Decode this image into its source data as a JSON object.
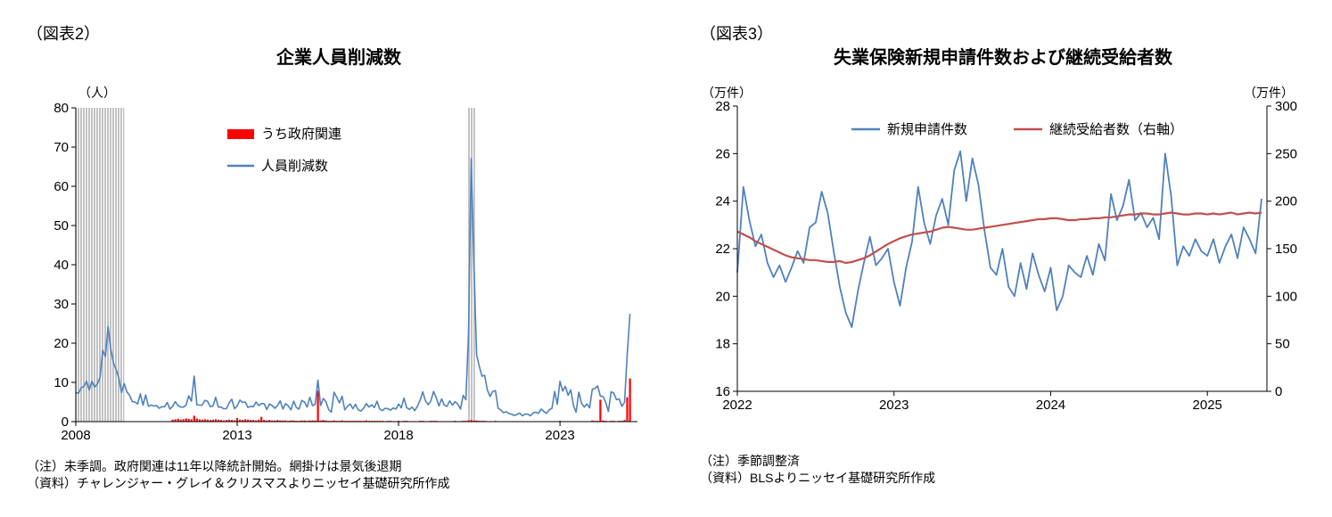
{
  "figure2": {
    "label": "（図表2）",
    "title": "企業人員削減数",
    "unit_left": "（人）",
    "notes": [
      "（注）未季調。政府関連は11年以降統計開始。網掛けは景気後退期",
      "（資料）チャレンジャー・グレイ＆クリスマスよりニッセイ基礎研究所作成"
    ]
  },
  "figure3": {
    "label": "（図表3）",
    "title": "失業保険新規申請件数および継続受給者数",
    "unit_left": "（万件）",
    "unit_right": "（万件）",
    "notes": [
      "（注）季節調整済",
      "（資料）BLSよりニッセイ基礎研究所作成"
    ]
  },
  "chart_data": [
    {
      "type": "combo-bar-line",
      "title": "企業人員削減数",
      "ylabel": "（人）",
      "xlim": [
        2008,
        2025.4
      ],
      "ylim": [
        0,
        80
      ],
      "yticks": [
        0,
        10,
        20,
        30,
        40,
        50,
        60,
        70,
        80
      ],
      "xticks": [
        2008,
        2013,
        2018,
        2023
      ],
      "grid": false,
      "legend_position": "upper-left-inside",
      "recession_bands": [
        [
          2008.0,
          2009.5
        ],
        [
          2020.12,
          2020.37
        ]
      ],
      "x_start": 2008.0,
      "x_step_years": 0.08333,
      "series": [
        {
          "name": "うち政府関連",
          "render": "bar",
          "color": "#FF0000",
          "values": [
            0,
            0,
            0,
            0,
            0,
            0,
            0,
            0,
            0,
            0,
            0,
            0,
            0,
            0,
            0,
            0,
            0,
            0,
            0,
            0,
            0,
            0,
            0,
            0,
            0,
            0,
            0,
            0,
            0,
            0,
            0,
            0,
            0,
            0,
            0,
            0,
            0.5,
            0.6,
            0.7,
            0.5,
            0.6,
            0.8,
            0.7,
            0.6,
            1.5,
            0.8,
            0.6,
            0.5,
            0.6,
            0.5,
            0.4,
            0.5,
            0.6,
            0.5,
            0.4,
            0.3,
            0.4,
            0.5,
            0.4,
            0.3,
            0.9,
            0.5,
            0.4,
            0.6,
            0.5,
            0.4,
            0.4,
            0.3,
            0.5,
            1.2,
            0.4,
            0.3,
            0.4,
            0.3,
            0.3,
            0.4,
            0.3,
            0.3,
            0.3,
            0.2,
            0.3,
            0.3,
            0.2,
            0.2,
            0.3,
            0.3,
            0.2,
            0.3,
            0.3,
            0.3,
            7.9,
            0.3,
            0.4,
            0.3,
            0.2,
            0.2,
            0.3,
            0.2,
            0.2,
            0.3,
            0.2,
            0.2,
            0.2,
            0.2,
            0.2,
            0.2,
            0.2,
            0.2,
            0.3,
            0.2,
            0.2,
            0.2,
            0.2,
            0.2,
            0.2,
            0.1,
            0.2,
            0.2,
            0.1,
            0.1,
            0.2,
            0.1,
            0.2,
            0.2,
            0.1,
            0.1,
            0.1,
            0.1,
            0.2,
            0.2,
            0.1,
            0.1,
            0.2,
            0.2,
            0.2,
            0.1,
            0.1,
            0.1,
            0.1,
            0.1,
            0.1,
            0.2,
            0.1,
            0.1,
            0.2,
            0.2,
            0.3,
            0.4,
            0.3,
            0.3,
            0.2,
            0.2,
            0.2,
            0.1,
            0.1,
            0.1,
            0.2,
            0.1,
            0.1,
            0.1,
            0.1,
            0.1,
            0.1,
            0.1,
            0.1,
            0.1,
            0.1,
            0.1,
            0.1,
            0.1,
            0.1,
            0.1,
            0.1,
            0.1,
            0.1,
            0.1,
            0.1,
            0.1,
            0.1,
            0.1,
            0.2,
            0.1,
            0.1,
            0.1,
            0.1,
            0.1,
            0.1,
            0.1,
            0.1,
            0.1,
            0.1,
            0.1,
            0.3,
            0.2,
            0.2,
            5.6,
            0.3,
            0.2,
            0.1,
            0.2,
            0.2,
            0.1,
            0.2,
            0.2,
            0.4,
            6.2,
            11.0
          ]
        },
        {
          "name": "人員削減数",
          "render": "line",
          "color": "#4F81BD",
          "values": [
            7.4,
            7.2,
            8.6,
            9.0,
            10.3,
            8.1,
            10.3,
            8.8,
            9.6,
            11.3,
            18.2,
            16.6,
            24.2,
            18.6,
            15.0,
            13.2,
            11.1,
            7.4,
            9.7,
            7.6,
            6.7,
            5.1,
            5.0,
            4.5,
            7.1,
            4.2,
            6.8,
            3.9,
            4.2,
            4.0,
            4.1,
            3.4,
            3.8,
            3.8,
            4.9,
            3.2,
            3.9,
            5.1,
            4.1,
            3.7,
            3.7,
            4.2,
            6.6,
            5.2,
            11.6,
            4.3,
            4.2,
            4.2,
            5.4,
            5.2,
            3.8,
            4.0,
            6.2,
            3.7,
            3.7,
            3.3,
            3.3,
            4.8,
            5.7,
            3.3,
            4.0,
            5.5,
            4.9,
            5.0,
            3.6,
            3.9,
            3.8,
            5.0,
            4.1,
            4.6,
            4.6,
            3.1,
            4.5,
            4.1,
            3.4,
            4.1,
            5.3,
            3.2,
            4.6,
            4.0,
            3.0,
            5.2,
            3.6,
            3.2,
            5.4,
            5.0,
            3.7,
            6.2,
            4.1,
            4.4,
            10.6,
            4.1,
            5.9,
            5.1,
            3.1,
            2.4,
            7.5,
            6.2,
            4.8,
            6.5,
            3.0,
            3.9,
            4.5,
            3.3,
            4.4,
            3.0,
            2.7,
            3.4,
            4.6,
            3.7,
            4.3,
            3.6,
            5.2,
            3.2,
            2.8,
            3.4,
            3.3,
            2.9,
            3.5,
            3.2,
            4.5,
            3.5,
            6.0,
            3.6,
            3.1,
            3.7,
            2.8,
            3.9,
            5.5,
            7.6,
            5.3,
            4.3,
            5.3,
            7.7,
            6.1,
            4.0,
            5.8,
            4.2,
            3.9,
            5.3,
            4.2,
            5.1,
            4.5,
            3.2,
            6.7,
            5.6,
            22.2,
            67.1,
            39.7,
            17.0,
            14.1,
            11.6,
            11.8,
            8.1,
            6.4,
            7.7,
            7.9,
            3.4,
            3.0,
            2.3,
            2.5,
            2.1,
            1.9,
            1.6,
            1.8,
            2.2,
            1.5,
            1.9,
            1.9,
            1.5,
            2.2,
            2.4,
            2.1,
            3.2,
            2.6,
            2.1,
            3.0,
            3.4,
            7.7,
            4.4,
            10.3,
            7.8,
            9.0,
            6.7,
            8.1,
            4.1,
            2.4,
            7.5,
            4.7,
            3.7,
            4.5,
            3.5,
            8.2,
            8.5,
            9.1,
            6.5,
            6.4,
            4.9,
            2.6,
            7.6,
            7.3,
            5.6,
            5.8,
            3.9,
            4.9,
            17.2,
            27.5
          ]
        }
      ]
    },
    {
      "type": "line",
      "title": "失業保険新規申請件数および継続受給者数",
      "xlim": [
        2022,
        2025.38
      ],
      "ylim_left": [
        16,
        28
      ],
      "ylim_right": [
        0,
        300
      ],
      "yticks_left": [
        16,
        18,
        20,
        22,
        24,
        26,
        28
      ],
      "yticks_right": [
        0,
        50,
        100,
        150,
        200,
        250,
        300
      ],
      "xticks": [
        2022,
        2023,
        2024,
        2025
      ],
      "grid": false,
      "legend_position": "top-inside",
      "x_start": 2022.0,
      "x_step": 0.03846,
      "series": [
        {
          "name": "新規申請件数",
          "axis": "left",
          "color": "#4F81BD",
          "values": [
            21.0,
            24.6,
            23.2,
            22.1,
            22.6,
            21.4,
            20.8,
            21.3,
            20.6,
            21.2,
            21.9,
            21.4,
            22.9,
            23.1,
            24.4,
            23.5,
            21.9,
            20.4,
            19.3,
            18.7,
            20.2,
            21.4,
            22.5,
            21.3,
            21.6,
            22.0,
            20.6,
            19.6,
            21.2,
            22.3,
            24.6,
            23.1,
            22.2,
            23.4,
            24.1,
            23.0,
            25.3,
            26.1,
            24.0,
            25.8,
            24.7,
            22.8,
            21.2,
            20.9,
            22.0,
            20.4,
            20.0,
            21.4,
            20.3,
            21.8,
            20.9,
            20.2,
            21.2,
            19.4,
            20.0,
            21.3,
            21.0,
            20.8,
            21.7,
            20.9,
            22.2,
            21.5,
            24.3,
            23.2,
            23.8,
            24.9,
            23.2,
            23.5,
            22.9,
            23.3,
            22.4,
            26.0,
            24.2,
            21.3,
            22.1,
            21.7,
            22.4,
            21.9,
            21.7,
            22.4,
            21.4,
            22.1,
            22.6,
            21.6,
            22.9,
            22.4,
            21.8,
            24.1
          ]
        },
        {
          "name": "継続受給者数（右軸）",
          "axis": "right",
          "color": "#C0504D",
          "values": [
            168,
            165,
            162,
            158,
            155,
            152,
            149,
            146,
            143,
            141,
            140,
            139,
            138,
            138,
            137,
            136,
            136,
            137,
            135,
            136,
            138,
            140,
            143,
            147,
            151,
            155,
            158,
            161,
            163,
            165,
            166,
            167,
            168,
            170,
            172,
            173,
            172,
            171,
            170,
            170,
            171,
            172,
            173,
            174,
            175,
            176,
            177,
            178,
            179,
            180,
            181,
            181,
            182,
            182,
            181,
            180,
            180,
            181,
            181,
            182,
            182,
            183,
            183,
            184,
            185,
            186,
            186,
            187,
            187,
            186,
            186,
            187,
            188,
            187,
            186,
            186,
            187,
            187,
            186,
            187,
            186,
            187,
            188,
            186,
            187,
            188,
            187,
            188
          ]
        }
      ]
    }
  ]
}
